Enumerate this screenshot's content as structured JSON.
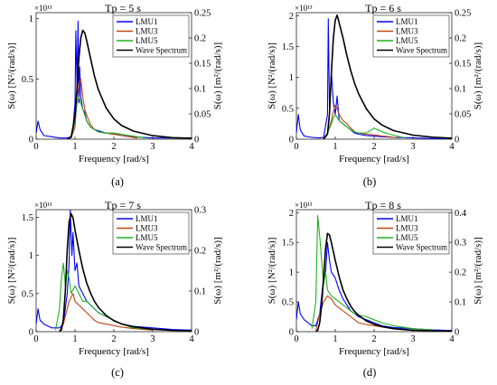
{
  "figure": {
    "x_unit_label": "Frequency [rad/s]",
    "left_axis_label": "S(ω) [N²/(rad/s)]",
    "right_axis_label": "S(ω) [m²/(rad/s)]",
    "left_scale_exponent": "×10¹³"
  },
  "colors": {
    "LMU1": "#0000ff",
    "LMU3": "#c1440e",
    "LMU5": "#1db31d",
    "Wave Spectrum": "#000000"
  },
  "chart_data": [
    {
      "type": "line",
      "title": "Tp = 5 s",
      "caption": "(a)",
      "xlabel": "Frequency [rad/s]",
      "ylabel": "S(ω) [N²/(rad/s)]",
      "y2label": "S(ω) [m²/(rad/s)]",
      "xlim": [
        0,
        4
      ],
      "xticks": [
        "0",
        "1",
        "2",
        "3",
        "4"
      ],
      "ylim": [
        0,
        1.05
      ],
      "yticks": [
        "0",
        "0.5",
        "1"
      ],
      "y_exponent": "×10¹³",
      "y2lim": [
        0,
        0.25
      ],
      "y2ticks": [
        "0",
        "0.05",
        "0.1",
        "0.15",
        "0.2",
        "0.25"
      ],
      "legend": [
        "LMU1",
        "LMU3",
        "LMU5",
        "Wave Spectrum"
      ],
      "legend_position": "top-right",
      "series": [
        {
          "name": "LMU1",
          "axis": "left",
          "x": [
            0.0,
            0.05,
            0.1,
            0.2,
            0.4,
            0.6,
            0.8,
            0.9,
            0.95,
            1.0,
            1.02,
            1.05,
            1.08,
            1.1,
            1.12,
            1.15,
            1.2,
            1.25,
            1.3,
            1.4,
            1.5,
            1.6,
            1.8,
            2.0,
            2.2,
            2.5,
            3.0,
            3.5,
            4.0
          ],
          "y": [
            0.05,
            0.15,
            0.08,
            0.03,
            0.02,
            0.01,
            0.01,
            0.02,
            0.1,
            0.3,
            0.9,
            0.45,
            0.98,
            0.3,
            0.6,
            0.35,
            0.25,
            0.22,
            0.15,
            0.1,
            0.08,
            0.07,
            0.05,
            0.05,
            0.03,
            0.02,
            0.01,
            0.01,
            0.01
          ]
        },
        {
          "name": "LMU3",
          "axis": "left",
          "x": [
            0.9,
            1.0,
            1.05,
            1.1,
            1.15,
            1.2,
            1.25,
            1.3,
            1.4,
            1.5,
            1.6,
            1.8,
            2.0,
            2.2,
            2.4,
            2.6
          ],
          "y": [
            0.01,
            0.1,
            0.35,
            0.45,
            0.5,
            0.35,
            0.25,
            0.2,
            0.12,
            0.08,
            0.06,
            0.05,
            0.04,
            0.03,
            0.02,
            0.01
          ]
        },
        {
          "name": "LMU5",
          "axis": "left",
          "x": [
            0.9,
            1.0,
            1.05,
            1.1,
            1.15,
            1.2,
            1.25,
            1.3,
            1.4,
            1.5,
            1.6,
            1.8,
            2.0,
            2.2,
            2.4,
            2.6,
            2.8
          ],
          "y": [
            0.01,
            0.15,
            0.3,
            0.35,
            0.3,
            0.25,
            0.2,
            0.15,
            0.1,
            0.08,
            0.06,
            0.05,
            0.05,
            0.04,
            0.03,
            0.02,
            0.01
          ]
        },
        {
          "name": "Wave Spectrum",
          "axis": "right",
          "x": [
            0.8,
            0.9,
            1.0,
            1.05,
            1.1,
            1.15,
            1.2,
            1.25,
            1.3,
            1.4,
            1.5,
            1.6,
            1.8,
            2.0,
            2.2,
            2.5,
            3.0,
            3.5,
            4.0
          ],
          "y": [
            0.0,
            0.004,
            0.045,
            0.1,
            0.16,
            0.2,
            0.215,
            0.21,
            0.195,
            0.16,
            0.125,
            0.098,
            0.062,
            0.04,
            0.027,
            0.016,
            0.007,
            0.003,
            0.002
          ]
        }
      ]
    },
    {
      "type": "line",
      "title": "Tp = 6 s",
      "caption": "(b)",
      "xlabel": "Frequency [rad/s]",
      "ylabel": "S(ω) [N²/(rad/s)]",
      "y2label": "S(ω) [m²/(rad/s)]",
      "xlim": [
        0,
        4
      ],
      "xticks": [
        "0",
        "1",
        "2",
        "3",
        "4"
      ],
      "ylim": [
        0,
        2.05
      ],
      "yticks": [
        "0",
        "0.5",
        "1",
        "1.5",
        "2"
      ],
      "y_exponent": "×10¹³",
      "y2lim": [
        0,
        0.25
      ],
      "y2ticks": [
        "0",
        "0.05",
        "0.1",
        "0.15",
        "0.2",
        "0.25"
      ],
      "legend": [
        "LMU1",
        "LMU3",
        "LMU5",
        "Wave Spectrum"
      ],
      "legend_position": "top-right",
      "series": [
        {
          "name": "LMU1",
          "axis": "left",
          "x": [
            0.0,
            0.05,
            0.1,
            0.2,
            0.4,
            0.6,
            0.7,
            0.8,
            0.82,
            0.85,
            0.9,
            0.95,
            1.0,
            1.05,
            1.1,
            1.2,
            1.3,
            1.4,
            1.5,
            1.6,
            1.8,
            2.0,
            2.2,
            2.5,
            3.0,
            3.5,
            4.0
          ],
          "y": [
            0.1,
            0.4,
            0.15,
            0.05,
            0.03,
            0.02,
            0.03,
            0.4,
            1.95,
            0.5,
            1.1,
            0.6,
            0.4,
            0.7,
            0.3,
            0.25,
            0.2,
            0.15,
            0.1,
            0.08,
            0.06,
            0.05,
            0.04,
            0.03,
            0.02,
            0.01,
            0.01
          ]
        },
        {
          "name": "LMU3",
          "axis": "left",
          "x": [
            0.7,
            0.8,
            0.9,
            0.95,
            1.0,
            1.05,
            1.1,
            1.2,
            1.3,
            1.4,
            1.5,
            1.6,
            1.8,
            2.0,
            2.2,
            2.4,
            2.6
          ],
          "y": [
            0.01,
            0.1,
            0.3,
            0.45,
            0.55,
            0.5,
            0.4,
            0.3,
            0.25,
            0.18,
            0.12,
            0.1,
            0.08,
            0.07,
            0.05,
            0.04,
            0.02
          ]
        },
        {
          "name": "LMU5",
          "axis": "left",
          "x": [
            0.7,
            0.8,
            0.9,
            0.95,
            1.0,
            1.05,
            1.1,
            1.2,
            1.3,
            1.4,
            1.5,
            1.6,
            1.8,
            2.0,
            2.2,
            2.4,
            2.6,
            2.8
          ],
          "y": [
            0.01,
            0.1,
            0.25,
            0.35,
            0.4,
            0.35,
            0.3,
            0.25,
            0.2,
            0.15,
            0.12,
            0.1,
            0.1,
            0.18,
            0.12,
            0.08,
            0.05,
            0.02
          ]
        },
        {
          "name": "Wave Spectrum",
          "axis": "right",
          "x": [
            0.7,
            0.8,
            0.85,
            0.9,
            0.95,
            1.0,
            1.05,
            1.1,
            1.2,
            1.3,
            1.4,
            1.5,
            1.6,
            1.8,
            2.0,
            2.2,
            2.5,
            3.0,
            3.5,
            4.0
          ],
          "y": [
            0.0,
            0.01,
            0.05,
            0.13,
            0.2,
            0.235,
            0.245,
            0.23,
            0.2,
            0.165,
            0.135,
            0.11,
            0.09,
            0.06,
            0.04,
            0.028,
            0.017,
            0.008,
            0.004,
            0.002
          ]
        }
      ]
    },
    {
      "type": "line",
      "title": "Tp = 7 s",
      "caption": "(c)",
      "xlabel": "Frequency [rad/s]",
      "ylabel": "S(ω) [N²/(rad/s)]",
      "y2label": "S(ω) [m²/(rad/s)]",
      "xlim": [
        0,
        4
      ],
      "xticks": [
        "0",
        "1",
        "2",
        "3",
        "4"
      ],
      "ylim": [
        0,
        1.6
      ],
      "yticks": [
        "0",
        "0.5",
        "1",
        "1.5"
      ],
      "y_exponent": "×10¹³",
      "y2lim": [
        0,
        0.3
      ],
      "y2ticks": [
        "0",
        "0.1",
        "0.2",
        "0.3"
      ],
      "legend": [
        "LMU1",
        "LMU3",
        "LMU5",
        "Wave Spectrum"
      ],
      "legend_position": "top-right",
      "series": [
        {
          "name": "LMU1",
          "axis": "left",
          "x": [
            0.0,
            0.05,
            0.1,
            0.2,
            0.4,
            0.6,
            0.7,
            0.75,
            0.8,
            0.85,
            0.88,
            0.92,
            0.95,
            1.0,
            1.05,
            1.1,
            1.2,
            1.3,
            1.4,
            1.5,
            1.6,
            1.8,
            2.0,
            2.2,
            2.5,
            3.0,
            3.5,
            4.0
          ],
          "y": [
            0.1,
            0.3,
            0.15,
            0.1,
            0.05,
            0.05,
            0.1,
            0.3,
            0.5,
            0.9,
            1.6,
            1.0,
            1.3,
            0.8,
            0.9,
            0.6,
            0.5,
            0.4,
            0.35,
            0.3,
            0.25,
            0.2,
            0.15,
            0.1,
            0.07,
            0.05,
            0.03,
            0.02
          ]
        },
        {
          "name": "LMU3",
          "axis": "left",
          "x": [
            0.6,
            0.7,
            0.8,
            0.85,
            0.9,
            0.95,
            1.0,
            1.1,
            1.2,
            1.3,
            1.4,
            1.5,
            1.6,
            1.8,
            2.0,
            2.2,
            2.5,
            3.0
          ],
          "y": [
            0.01,
            0.1,
            0.3,
            0.4,
            0.45,
            0.5,
            0.4,
            0.35,
            0.3,
            0.25,
            0.2,
            0.15,
            0.12,
            0.1,
            0.08,
            0.06,
            0.04,
            0.02
          ]
        },
        {
          "name": "LMU5",
          "axis": "left",
          "x": [
            0.5,
            0.6,
            0.65,
            0.7,
            0.75,
            0.8,
            0.85,
            0.9,
            1.0,
            1.1,
            1.2,
            1.3,
            1.4,
            1.5,
            1.6,
            1.8,
            2.0,
            2.2,
            2.5,
            3.0
          ],
          "y": [
            0.02,
            0.3,
            0.7,
            0.9,
            0.6,
            0.8,
            0.7,
            0.5,
            0.6,
            0.5,
            0.4,
            0.4,
            0.35,
            0.3,
            0.25,
            0.2,
            0.15,
            0.1,
            0.05,
            0.03
          ]
        },
        {
          "name": "Wave Spectrum",
          "axis": "right",
          "x": [
            0.6,
            0.65,
            0.7,
            0.75,
            0.8,
            0.85,
            0.9,
            0.95,
            1.0,
            1.1,
            1.2,
            1.3,
            1.4,
            1.5,
            1.6,
            1.8,
            2.0,
            2.2,
            2.5,
            3.0,
            3.5,
            4.0
          ],
          "y": [
            0.0,
            0.005,
            0.03,
            0.1,
            0.2,
            0.27,
            0.29,
            0.28,
            0.25,
            0.2,
            0.155,
            0.12,
            0.095,
            0.075,
            0.06,
            0.04,
            0.027,
            0.019,
            0.012,
            0.006,
            0.003,
            0.002
          ]
        }
      ]
    },
    {
      "type": "line",
      "title": "Tp = 8 s",
      "caption": "(d)",
      "xlabel": "Frequency [rad/s]",
      "ylabel": "S(ω) [N²/(rad/s)]",
      "y2label": "S(ω) [m²/(rad/s)]",
      "xlim": [
        0,
        4
      ],
      "xticks": [
        "0",
        "1",
        "2",
        "3",
        "4"
      ],
      "ylim": [
        0,
        2.05
      ],
      "yticks": [
        "0",
        "0.5",
        "1",
        "1.5",
        "2"
      ],
      "y_exponent": "×10¹³",
      "y2lim": [
        0,
        0.41
      ],
      "y2ticks": [
        "0",
        "0.1",
        "0.2",
        "0.3",
        "0.4"
      ],
      "legend": [
        "LMU1",
        "LMU3",
        "LMU5",
        "Wave Spectrum"
      ],
      "legend_position": "top-right",
      "series": [
        {
          "name": "LMU1",
          "axis": "left",
          "x": [
            0.0,
            0.05,
            0.1,
            0.2,
            0.3,
            0.4,
            0.5,
            0.6,
            0.65,
            0.7,
            0.75,
            0.8,
            0.85,
            0.9,
            1.0,
            1.1,
            1.2,
            1.3,
            1.4,
            1.5,
            1.6,
            1.8,
            2.0,
            2.2,
            2.5,
            3.0,
            3.5,
            4.0
          ],
          "y": [
            0.2,
            0.5,
            0.3,
            0.2,
            0.15,
            0.1,
            0.1,
            0.3,
            0.6,
            0.9,
            1.0,
            1.5,
            1.2,
            1.0,
            0.9,
            0.7,
            0.55,
            0.45,
            0.35,
            0.3,
            0.25,
            0.2,
            0.15,
            0.1,
            0.07,
            0.05,
            0.03,
            0.02
          ]
        },
        {
          "name": "LMU3",
          "axis": "left",
          "x": [
            0.5,
            0.6,
            0.7,
            0.8,
            0.9,
            1.0,
            1.1,
            1.2,
            1.3,
            1.4,
            1.5,
            1.6,
            1.8,
            2.0,
            2.2,
            2.5,
            3.0
          ],
          "y": [
            0.02,
            0.3,
            0.5,
            0.6,
            0.55,
            0.45,
            0.4,
            0.35,
            0.3,
            0.25,
            0.2,
            0.15,
            0.12,
            0.1,
            0.08,
            0.05,
            0.02
          ]
        },
        {
          "name": "LMU5",
          "axis": "left",
          "x": [
            0.4,
            0.5,
            0.55,
            0.6,
            0.65,
            0.7,
            0.75,
            0.8,
            0.9,
            1.0,
            1.1,
            1.2,
            1.3,
            1.4,
            1.5,
            1.6,
            1.8,
            2.0,
            2.2,
            2.5,
            3.0,
            3.5
          ],
          "y": [
            0.05,
            0.5,
            1.95,
            1.6,
            1.2,
            0.8,
            1.0,
            0.7,
            0.6,
            0.55,
            0.5,
            0.45,
            0.4,
            0.35,
            0.3,
            0.28,
            0.25,
            0.2,
            0.15,
            0.1,
            0.05,
            0.03
          ]
        },
        {
          "name": "Wave Spectrum",
          "axis": "right",
          "x": [
            0.5,
            0.55,
            0.6,
            0.65,
            0.7,
            0.75,
            0.8,
            0.85,
            0.9,
            1.0,
            1.1,
            1.2,
            1.3,
            1.4,
            1.5,
            1.6,
            1.8,
            2.0,
            2.2,
            2.5,
            3.0,
            3.5,
            4.0
          ],
          "y": [
            0.0,
            0.005,
            0.03,
            0.09,
            0.18,
            0.28,
            0.33,
            0.325,
            0.3,
            0.24,
            0.185,
            0.14,
            0.11,
            0.085,
            0.068,
            0.055,
            0.036,
            0.025,
            0.017,
            0.01,
            0.005,
            0.003,
            0.002
          ]
        }
      ]
    }
  ]
}
